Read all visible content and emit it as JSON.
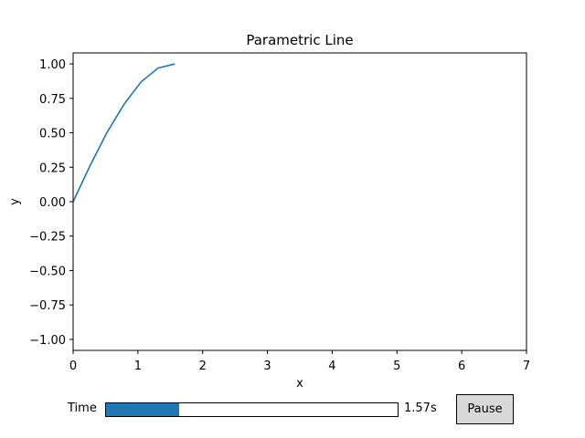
{
  "chart_data": {
    "type": "line",
    "title": "Parametric Line",
    "xlabel": "x",
    "ylabel": "y",
    "xlim": [
      0,
      7
    ],
    "ylim": [
      -1.08,
      1.08
    ],
    "xticks": [
      0,
      1,
      2,
      3,
      4,
      5,
      6,
      7
    ],
    "yticks": [
      -1.0,
      -0.75,
      -0.5,
      -0.25,
      0.0,
      0.25,
      0.5,
      0.75,
      1.0
    ],
    "xtick_labels": [
      "0",
      "1",
      "2",
      "3",
      "4",
      "5",
      "6",
      "7"
    ],
    "ytick_labels": [
      "−1.00",
      "−0.75",
      "−0.50",
      "−0.25",
      "0.00",
      "0.25",
      "0.50",
      "0.75",
      "1.00"
    ],
    "grid": false,
    "series": [
      {
        "color": "#1f77b4",
        "x": [
          0,
          0.26,
          0.52,
          0.79,
          1.05,
          1.31,
          1.57
        ],
        "y": [
          0,
          0.26,
          0.5,
          0.71,
          0.87,
          0.97,
          1.0
        ]
      }
    ]
  },
  "controls": {
    "time_label": "Time",
    "time_value": 1.57,
    "time_min": 0,
    "time_max": 6.28,
    "time_display": "1.57s",
    "accent": "#1f77b4",
    "pause_label": "Pause"
  }
}
